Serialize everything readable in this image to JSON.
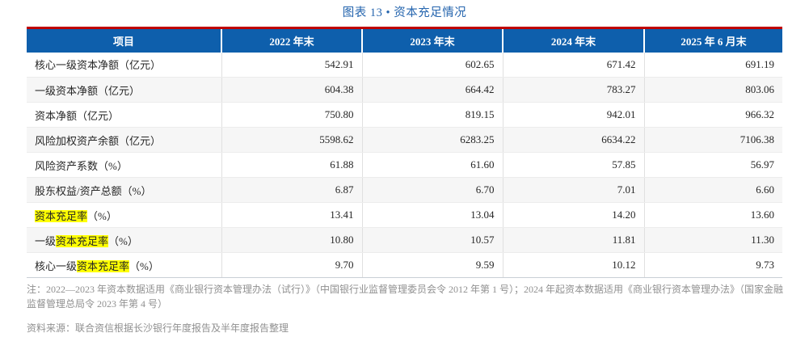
{
  "title": "图表 13 •  资本充足情况",
  "colors": {
    "header_bg": "#0e5fac",
    "header_top_rule": "#c00000",
    "title": "#2565ae",
    "highlight": "#ffff00",
    "note_text": "#909090"
  },
  "table": {
    "headers": [
      "项目",
      "2022 年末",
      "2023 年末",
      "2024 年末",
      "2025 年 6 月末"
    ],
    "rows": [
      {
        "label_parts": [
          {
            "text": "核心一级资本净额（亿元）",
            "hl": false
          }
        ],
        "values": [
          "542.91",
          "602.65",
          "671.42",
          "691.19"
        ]
      },
      {
        "label_parts": [
          {
            "text": "一级资本净额（亿元）",
            "hl": false
          }
        ],
        "values": [
          "604.38",
          "664.42",
          "783.27",
          "803.06"
        ]
      },
      {
        "label_parts": [
          {
            "text": "资本净额（亿元）",
            "hl": false
          }
        ],
        "values": [
          "750.80",
          "819.15",
          "942.01",
          "966.32"
        ]
      },
      {
        "label_parts": [
          {
            "text": "风险加权资产余额（亿元）",
            "hl": false
          }
        ],
        "values": [
          "5598.62",
          "6283.25",
          "6634.22",
          "7106.38"
        ]
      },
      {
        "label_parts": [
          {
            "text": "风险资产系数（%）",
            "hl": false
          }
        ],
        "values": [
          "61.88",
          "61.60",
          "57.85",
          "56.97"
        ]
      },
      {
        "label_parts": [
          {
            "text": "股东权益/资产总额（%）",
            "hl": false
          }
        ],
        "values": [
          "6.87",
          "6.70",
          "7.01",
          "6.60"
        ]
      },
      {
        "label_parts": [
          {
            "text": "资本充足率",
            "hl": true
          },
          {
            "text": "（%）",
            "hl": false
          }
        ],
        "values": [
          "13.41",
          "13.04",
          "14.20",
          "13.60"
        ]
      },
      {
        "label_parts": [
          {
            "text": "一级",
            "hl": false
          },
          {
            "text": "资本充足率",
            "hl": true
          },
          {
            "text": "（%）",
            "hl": false
          }
        ],
        "values": [
          "10.80",
          "10.57",
          "11.81",
          "11.30"
        ]
      },
      {
        "label_parts": [
          {
            "text": "核心一级",
            "hl": false
          },
          {
            "text": "资本充足率",
            "hl": true
          },
          {
            "text": "（%）",
            "hl": false
          }
        ],
        "values": [
          "9.70",
          "9.59",
          "10.12",
          "9.73"
        ]
      }
    ]
  },
  "footnotes": {
    "note": "注：2022—2023 年资本数据适用《商业银行资本管理办法（试行）》（中国银行业监督管理委员会令 2012 年第 1 号）；2024 年起资本数据适用《商业银行资本管理办法》（国家金融监督管理总局令 2023 年第 4 号）",
    "source": "资料来源：联合资信根据长沙银行年度报告及半年度报告整理"
  }
}
